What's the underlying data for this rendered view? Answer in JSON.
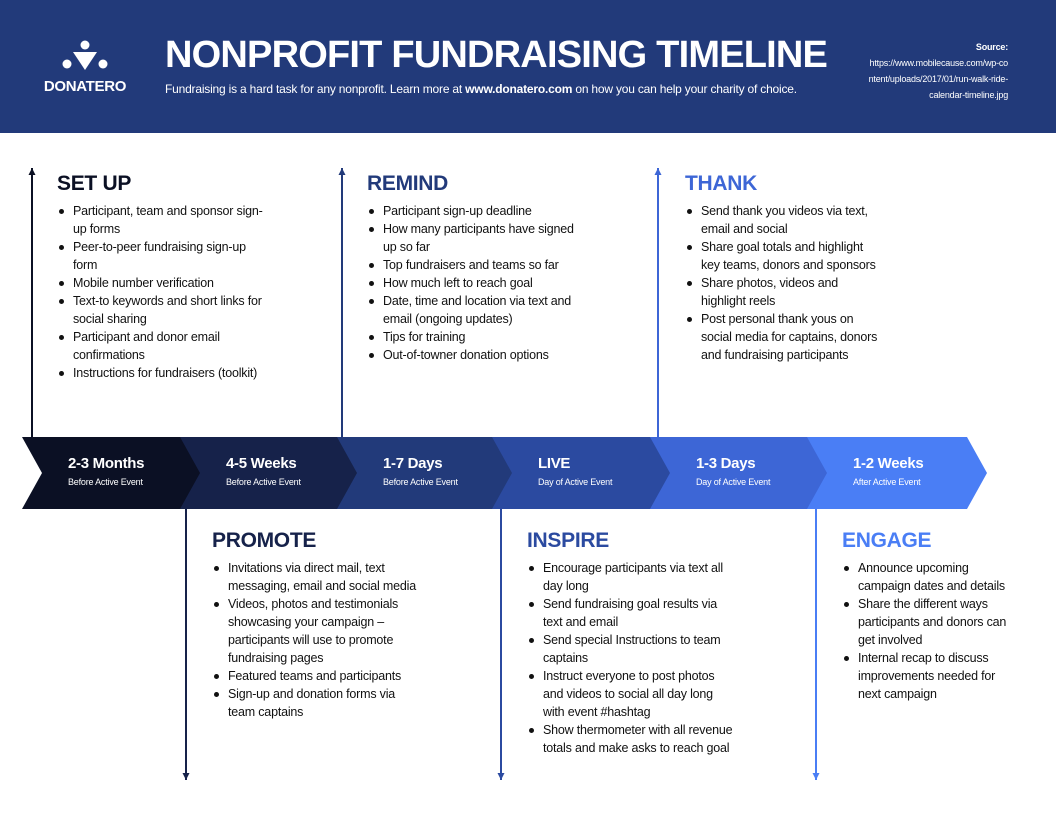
{
  "header": {
    "logo_text": "DONATERO",
    "title": "NONPROFIT FUNDRAISING TIMELINE",
    "subtitle_pre": "Fundraising is a hard task for any nonprofit. Learn more at ",
    "subtitle_link": "www.donatero.com",
    "subtitle_post": " on how you can help your charity of choice.",
    "source_label": "Source:",
    "source_url": "https://www.mobilecause.com/wp-content/uploads/2017/01/run-walk-ride-calendar-timeline.jpg"
  },
  "colors": [
    "#0b1024",
    "#16224a",
    "#223a7a",
    "#2b4aa0",
    "#3d66d6",
    "#4a7ef5"
  ],
  "phases": [
    {
      "title": "2-3 Months",
      "sub": "Before Active Event"
    },
    {
      "title": "4-5 Weeks",
      "sub": "Before Active Event"
    },
    {
      "title": "1-7 Days",
      "sub": "Before Active Event"
    },
    {
      "title": "LIVE",
      "sub": "Day of Active Event"
    },
    {
      "title": "1-3 Days",
      "sub": "Day of Active Event"
    },
    {
      "title": "1-2 Weeks",
      "sub": "After Active Event"
    }
  ],
  "stages": [
    {
      "heading": "SET UP",
      "items": [
        "Participant, team and sponsor sign-up forms",
        "Peer-to-peer fundraising sign-up form",
        "Mobile number verification",
        "Text-to keywords and short links for social sharing",
        "Participant and donor email confirmations",
        "Instructions for fundraisers (toolkit)"
      ]
    },
    {
      "heading": "PROMOTE",
      "items": [
        "Invitations via direct mail, text messaging, email and social media",
        "Videos, photos and testimonials showcasing your campaign – participants will use to promote fundraising pages",
        "Featured teams and participants",
        "Sign-up and donation forms via team captains"
      ]
    },
    {
      "heading": "REMIND",
      "items": [
        "Participant sign-up deadline",
        "How many participants have signed up so far",
        "Top fundraisers and teams so far",
        "How much left to reach goal",
        "Date, time and location via text and email (ongoing updates)",
        "Tips for training",
        "Out-of-towner donation options"
      ]
    },
    {
      "heading": "INSPIRE",
      "items": [
        "Encourage participants via text all day long",
        "Send fundraising goal results via text and email",
        "Send special Instructions to team captains",
        "Instruct everyone to post photos and videos to social all day long with event #hashtag",
        "Show thermometer with all revenue totals and make asks to reach goal"
      ]
    },
    {
      "heading": "THANK",
      "items": [
        "Send thank you videos via text, email and social",
        "Share goal totals and highlight key teams, donors and sponsors",
        "Share photos, videos and highlight reels",
        "Post personal thank yous on social media for captains, donors and fundraising participants"
      ]
    },
    {
      "heading": "ENGAGE",
      "items": [
        "Announce upcoming campaign dates and details",
        "Share the different ways participants and donors can get involved",
        "Internal recap to discuss improvements needed for next campaign"
      ]
    }
  ]
}
